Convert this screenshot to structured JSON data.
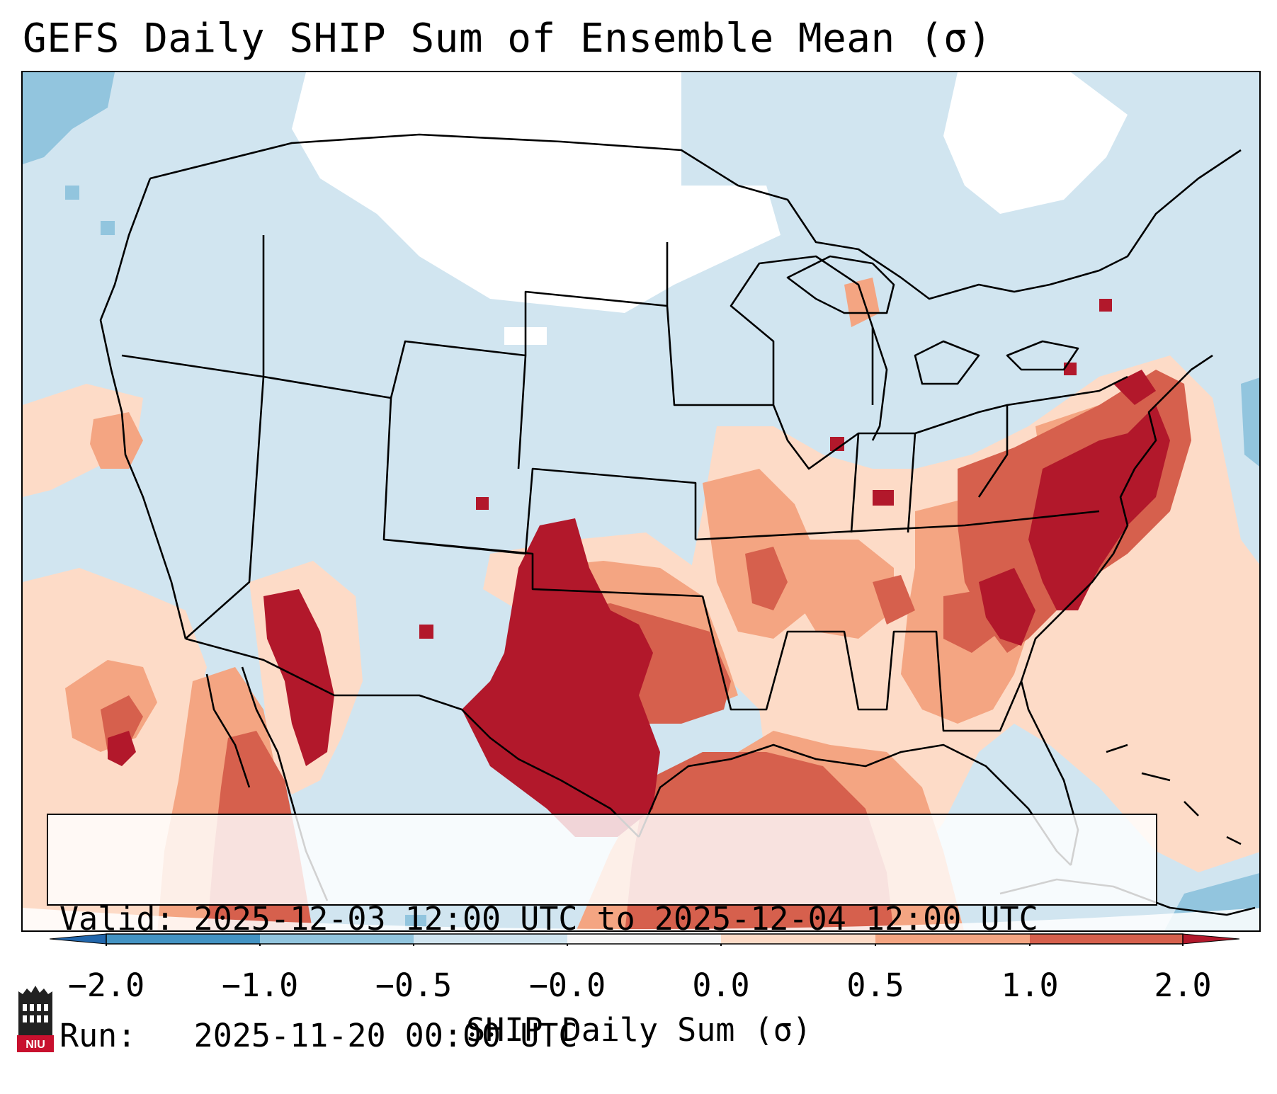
{
  "title": "GEFS Daily SHIP Sum of Ensemble Mean (σ)",
  "info": {
    "valid": "Valid: 2025-12-03 12:00 UTC to 2025-12-04 12:00 UTC",
    "run": "Run:   2025-11-20 00:00 UTC"
  },
  "colorbar": {
    "label": "SHIP Daily Sum (σ)",
    "ticks": [
      "−2.0",
      "−1.0",
      "−0.5",
      "−0.0",
      "0.0",
      "0.5",
      "1.0",
      "2.0"
    ],
    "bins": [
      {
        "range": "<-2.0",
        "color": "#2166ac"
      },
      {
        "range": "-2.0 to -1.0",
        "color": "#4393c3"
      },
      {
        "range": "-1.0 to -0.5",
        "color": "#92c5de"
      },
      {
        "range": "-0.5 to -0.0",
        "color": "#d1e5f0"
      },
      {
        "range": "-0.0 to 0.0",
        "color": "#f7f7f7"
      },
      {
        "range": "0.0 to 0.5",
        "color": "#fddbc7"
      },
      {
        "range": "0.5 to 1.0",
        "color": "#f4a582"
      },
      {
        "range": "1.0 to 2.0",
        "color": "#d6604d"
      },
      {
        "range": ">2.0",
        "color": "#b2182b"
      }
    ]
  },
  "logo": {
    "text": "NIU",
    "name": "Northern Illinois University"
  },
  "colors": {
    "land_neutral": "#d1e5f0",
    "near_zero": "#ffffff",
    "light_warm": "#fddbc7",
    "warm": "#f4a582",
    "hot": "#d6604d",
    "very_hot": "#b2182b",
    "light_cool": "#92c5de"
  }
}
